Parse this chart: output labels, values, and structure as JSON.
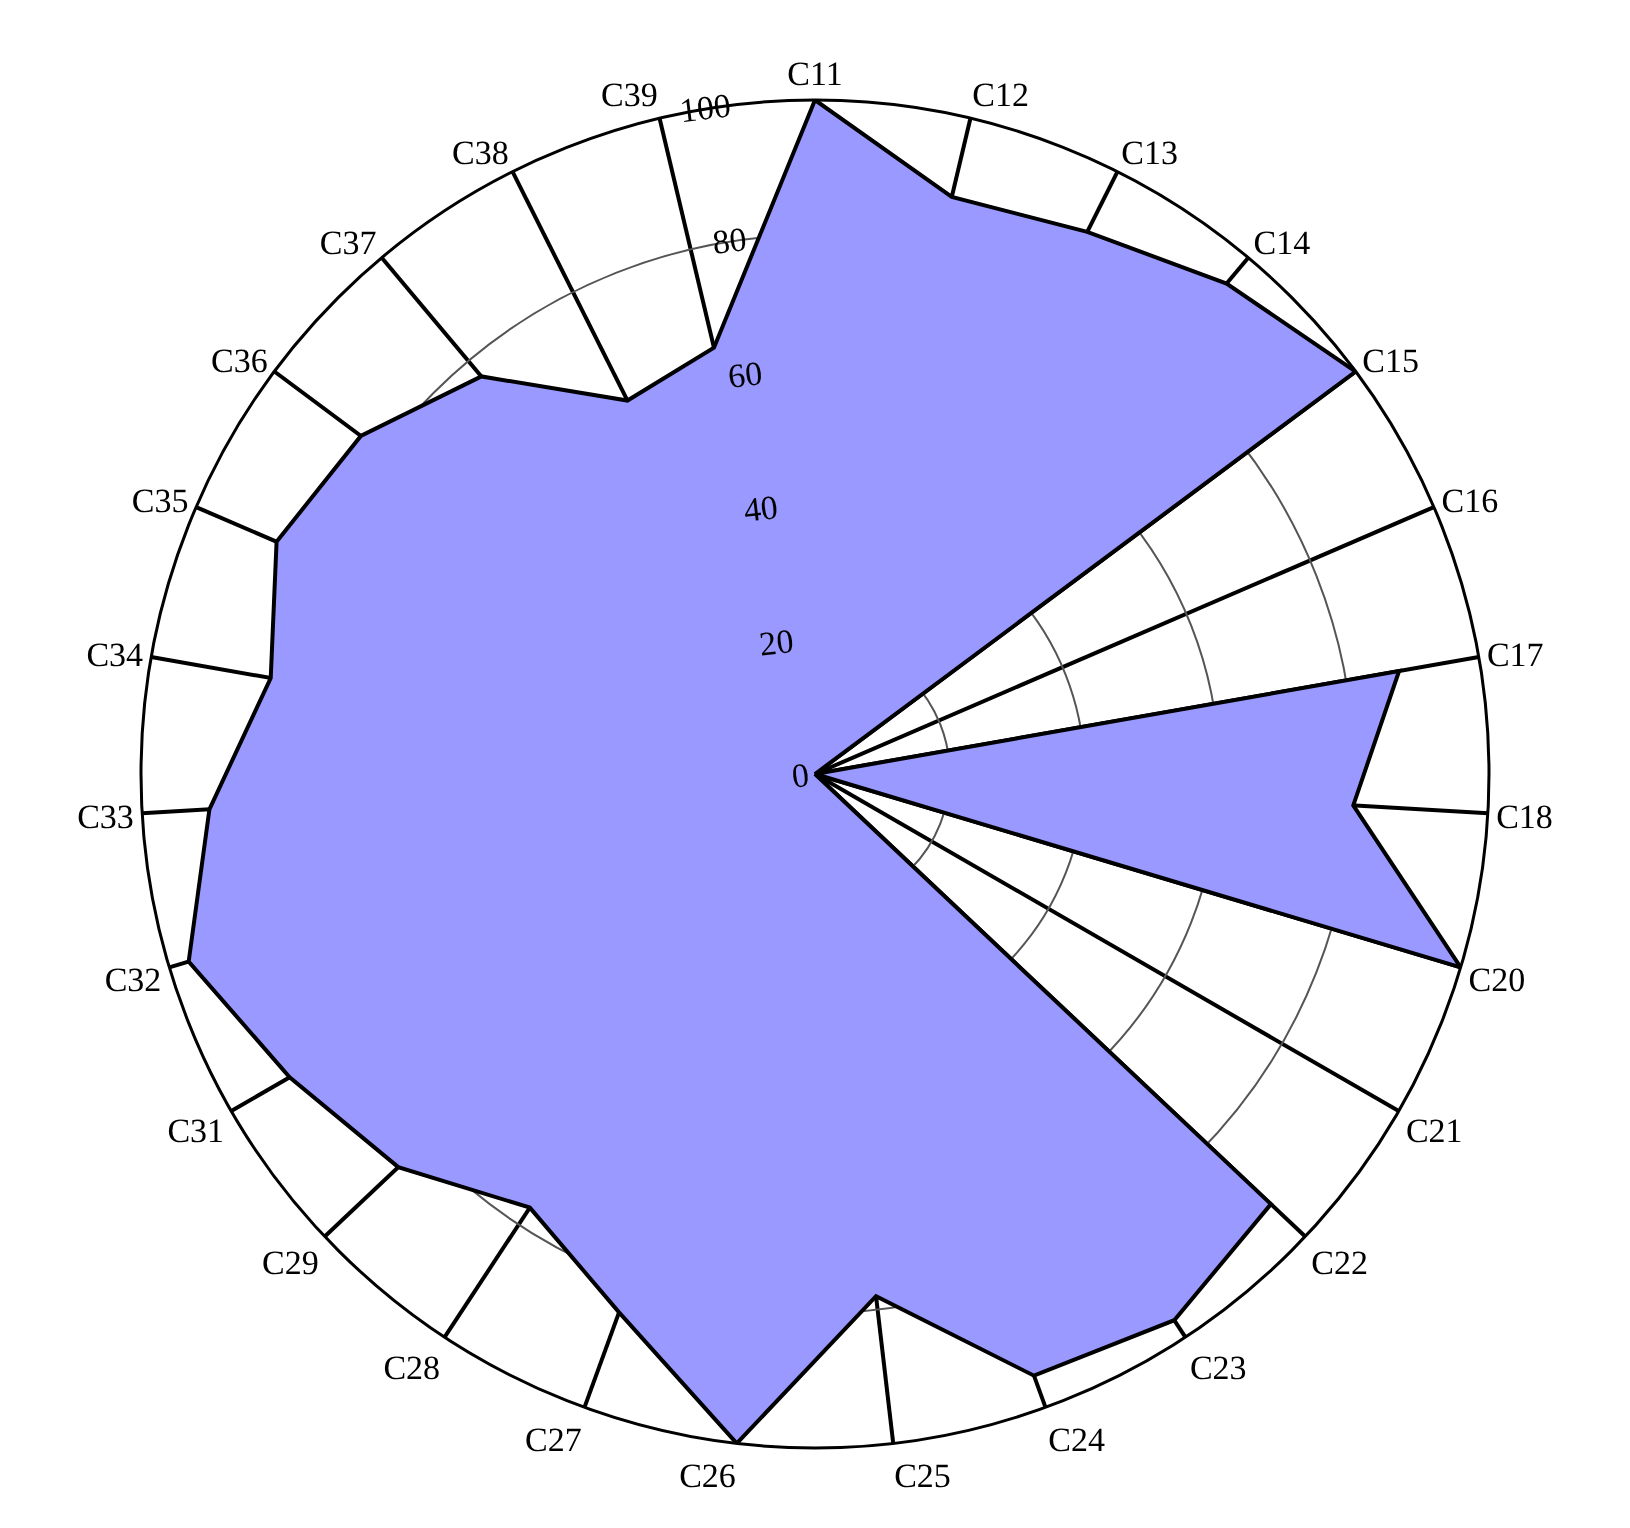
{
  "chart_data": {
    "type": "radar",
    "categories": [
      "C11",
      "C12",
      "C13",
      "C14",
      "C15",
      "C16",
      "C17",
      "C18",
      "C20",
      "C21",
      "C22",
      "C23",
      "C24",
      "C25",
      "C26",
      "C27",
      "C28",
      "C29",
      "C31",
      "C32",
      "C33",
      "C34",
      "C35",
      "C36",
      "C37",
      "C38",
      "C39"
    ],
    "series": [
      {
        "color": "#9999ff",
        "values": [
          100,
          88,
          90,
          95,
          100,
          0,
          88,
          80,
          100,
          0,
          93,
          97,
          95,
          78,
          100,
          85,
          77,
          85,
          90,
          97,
          90,
          82,
          87,
          84,
          77,
          62,
          65
        ]
      }
    ],
    "ylim": [
      0,
      100
    ],
    "yticks": [
      0,
      20,
      40,
      60,
      80,
      100
    ],
    "grid": true
  }
}
